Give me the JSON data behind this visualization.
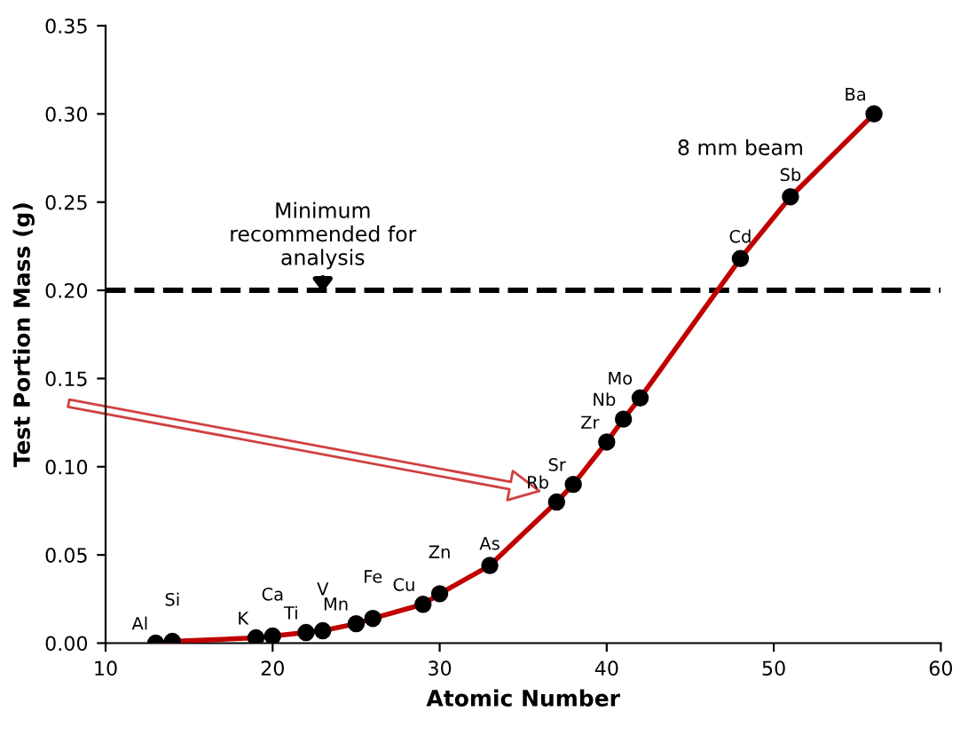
{
  "chart_data": {
    "type": "line",
    "xlabel": "Atomic Number",
    "ylabel": "Test Portion Mass (g)",
    "x": [
      13,
      14,
      19,
      20,
      22,
      23,
      25,
      26,
      29,
      30,
      33,
      37,
      38,
      40,
      41,
      42,
      48,
      51,
      56
    ],
    "series": [
      {
        "color": "#c00000",
        "values": [
          0.0,
          0.001,
          0.003,
          0.004,
          0.006,
          0.007,
          0.011,
          0.014,
          0.022,
          0.028,
          0.044,
          0.08,
          0.09,
          0.114,
          0.127,
          0.139,
          0.218,
          0.253,
          0.3
        ],
        "value_labels": [
          "Al",
          "Si",
          "K",
          "Ca",
          "Ti",
          "V",
          "Mn",
          "Fe",
          "Cu",
          "Zn",
          "As",
          "Rb",
          "Sr",
          "Zr",
          "Nb",
          "Mo",
          "Cd",
          "Sb",
          "Ba"
        ]
      }
    ],
    "marker": "circle",
    "line_style": "solid",
    "grid": false,
    "legend": false,
    "xlim": [
      10,
      60
    ],
    "xticks": [
      10,
      20,
      30,
      40,
      50,
      60
    ],
    "ylim": [
      0,
      0.35
    ],
    "yticks": [
      {
        "value": 0,
        "label": "0.00"
      },
      {
        "value": 0.05,
        "label": "0.05"
      },
      {
        "value": 0.1,
        "label": "0.10"
      },
      {
        "value": 0.15,
        "label": "0.15"
      },
      {
        "value": 0.2,
        "label": "0.20"
      },
      {
        "value": 0.25,
        "label": "0.25"
      },
      {
        "value": 0.3,
        "label": "0.30"
      },
      {
        "value": 0.35,
        "label": "0.35"
      }
    ],
    "ref_lines": [
      {
        "axis": "y",
        "value": 0.2,
        "label": null,
        "color": "#000000",
        "line_style": "dashed"
      }
    ],
    "annotations": [
      "Minimum\nrecommended for\nanalysis",
      "8 mm beam"
    ]
  }
}
